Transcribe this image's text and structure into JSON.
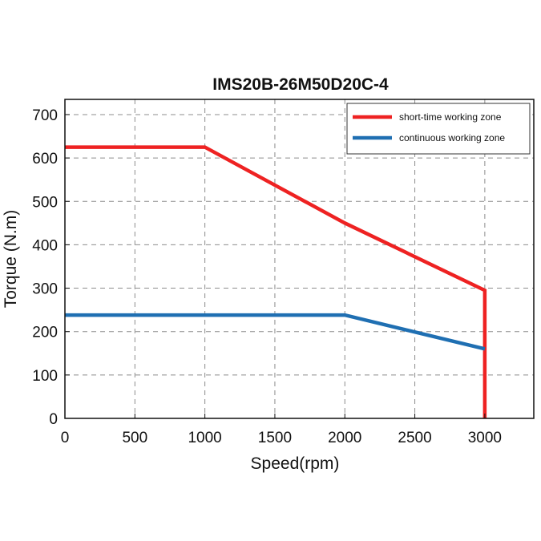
{
  "chart_data": {
    "type": "line",
    "title": "IMS20B-26M50D20C-4",
    "xlabel": "Speed(rpm)",
    "ylabel": "Torque (N.m)",
    "xlim": [
      0,
      3350
    ],
    "ylim": [
      0,
      735
    ],
    "xticks": [
      0,
      500,
      1000,
      1500,
      2000,
      2500,
      3000
    ],
    "yticks": [
      0,
      100,
      200,
      300,
      400,
      500,
      600,
      700
    ],
    "grid": true,
    "legend_position": "top-right",
    "series": [
      {
        "name": "short-time working zone",
        "color": "#ee2222",
        "x": [
          0,
          1000,
          2000,
          3000,
          3000
        ],
        "y": [
          625,
          625,
          450,
          295,
          0
        ]
      },
      {
        "name": "continuous working zone",
        "color": "#1f6fb2",
        "x": [
          0,
          2000,
          3000
        ],
        "y": [
          238,
          238,
          160
        ]
      }
    ]
  }
}
